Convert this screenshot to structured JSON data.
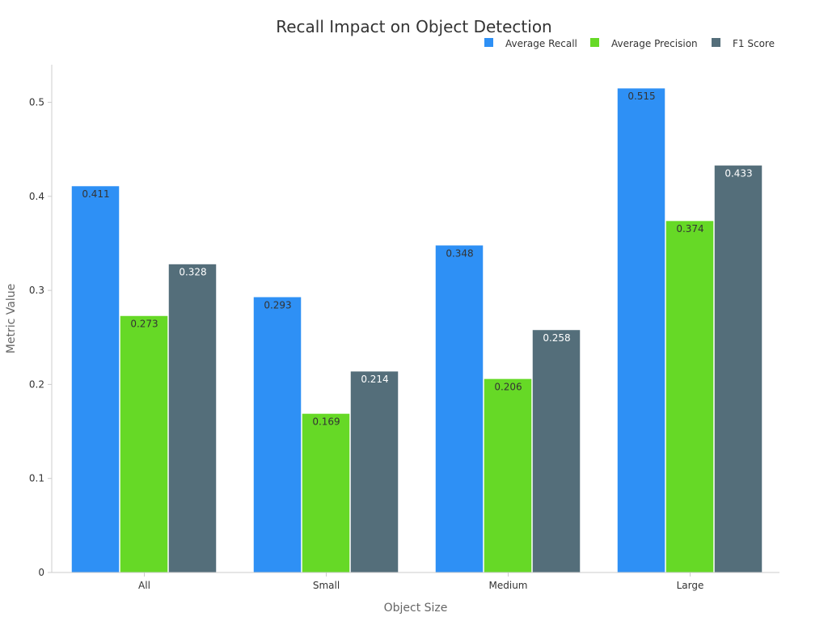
{
  "chart_data": {
    "type": "bar",
    "title": "Recall Impact on Object Detection",
    "xlabel": "Object Size",
    "ylabel": "Metric Value",
    "categories": [
      "All",
      "Small",
      "Medium",
      "Large"
    ],
    "series": [
      {
        "name": "Average Recall",
        "color": "#2e90f5",
        "label_color": "#333333",
        "values": [
          0.411,
          0.293,
          0.348,
          0.515
        ]
      },
      {
        "name": "Average Precision",
        "color": "#66d926",
        "label_color": "#333333",
        "values": [
          0.273,
          0.169,
          0.206,
          0.374
        ]
      },
      {
        "name": "F1 Score",
        "color": "#546e7a",
        "label_color": "#ffffff",
        "values": [
          0.328,
          0.214,
          0.258,
          0.433
        ]
      }
    ],
    "ylim": [
      0,
      0.54
    ],
    "yticks": [
      0,
      0.1,
      0.2,
      0.3,
      0.4,
      0.5
    ],
    "ytick_labels": [
      "0",
      "0.1",
      "0.2",
      "0.3",
      "0.4",
      "0.5"
    ],
    "grid": false,
    "legend_position": "top-right"
  }
}
